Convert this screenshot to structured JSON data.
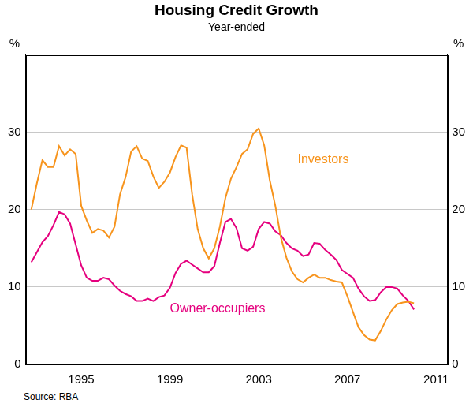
{
  "chart_data": {
    "type": "line",
    "title": "Housing Credit Growth",
    "subtitle": "Year-ended",
    "ylabel": "%",
    "source": "Source: RBA",
    "x": [
      1992.75,
      1993,
      1993.25,
      1993.5,
      1993.75,
      1994,
      1994.25,
      1994.5,
      1994.75,
      1995,
      1995.25,
      1995.5,
      1995.75,
      1996,
      1996.25,
      1996.5,
      1996.75,
      1997,
      1997.25,
      1997.5,
      1997.75,
      1998,
      1998.25,
      1998.5,
      1998.75,
      1999,
      1999.25,
      1999.5,
      1999.75,
      2000,
      2000.25,
      2000.5,
      2000.75,
      2001,
      2001.25,
      2001.5,
      2001.75,
      2002,
      2002.25,
      2002.5,
      2002.75,
      2003,
      2003.25,
      2003.5,
      2003.75,
      2004,
      2004.25,
      2004.5,
      2004.75,
      2005,
      2005.25,
      2005.5,
      2005.75,
      2006,
      2006.25,
      2006.5,
      2006.75,
      2007,
      2007.25,
      2007.5,
      2007.75,
      2008,
      2008.25,
      2008.5,
      2008.75,
      2009,
      2009.25,
      2009.5,
      2009.75,
      2010
    ],
    "series": [
      {
        "name": "Investors",
        "color": "#f7941d",
        "values": [
          20.0,
          23.4,
          26.4,
          25.5,
          25.5,
          28.2,
          27.0,
          27.8,
          27.2,
          20.5,
          18.6,
          17.0,
          17.5,
          17.3,
          16.4,
          17.8,
          22.0,
          24.2,
          27.5,
          28.2,
          26.6,
          26.3,
          24.3,
          22.8,
          23.6,
          24.8,
          26.8,
          28.3,
          28.0,
          22.0,
          17.5,
          15.0,
          13.7,
          15.0,
          17.8,
          21.5,
          24.0,
          25.5,
          27.2,
          27.8,
          29.8,
          30.5,
          28.3,
          23.8,
          20.5,
          16.4,
          13.8,
          12.0,
          11.0,
          10.6,
          11.2,
          11.6,
          11.2,
          11.2,
          10.9,
          10.7,
          10.6,
          8.8,
          6.8,
          4.8,
          3.8,
          3.2,
          3.1,
          4.3,
          5.8,
          7.0,
          7.8,
          8.0,
          8.1,
          7.9
        ]
      },
      {
        "name": "Owner-occupiers",
        "color": "#e5007e",
        "values": [
          13.2,
          14.5,
          15.8,
          16.6,
          18.0,
          19.7,
          19.4,
          18.2,
          15.5,
          12.8,
          11.2,
          10.8,
          10.8,
          11.2,
          11.0,
          10.2,
          9.5,
          9.1,
          8.8,
          8.2,
          8.2,
          8.5,
          8.2,
          8.7,
          8.9,
          9.9,
          11.8,
          13.0,
          13.4,
          12.9,
          12.4,
          11.9,
          11.9,
          12.7,
          15.7,
          18.4,
          18.8,
          17.6,
          15.0,
          14.7,
          15.2,
          17.5,
          18.4,
          18.2,
          17.2,
          16.7,
          15.7,
          15.0,
          14.7,
          14.0,
          14.2,
          15.7,
          15.6,
          14.8,
          14.2,
          13.5,
          12.2,
          11.7,
          11.2,
          9.8,
          8.8,
          8.2,
          8.3,
          9.3,
          10.0,
          10.0,
          9.8,
          8.9,
          8.2,
          7.1
        ]
      }
    ],
    "xlim": [
      1992.5,
      2011.5
    ],
    "xticks": [
      1995,
      1999,
      2003,
      2007,
      2011
    ],
    "ylim": [
      0,
      40
    ],
    "yticks": [
      0,
      10,
      20,
      30
    ],
    "grid": true
  }
}
